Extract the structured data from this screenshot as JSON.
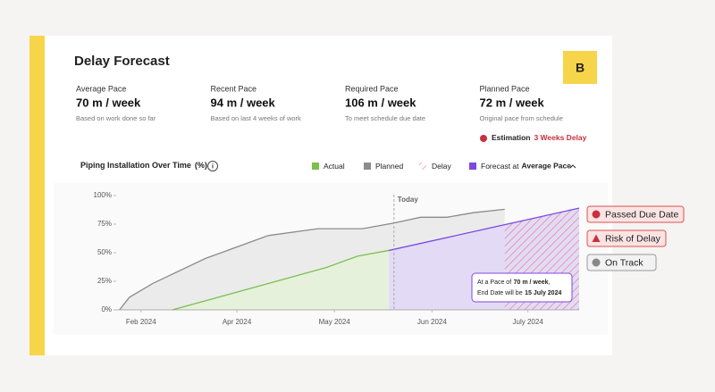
{
  "header": {
    "title": "Delay Forecast",
    "logo": "B"
  },
  "metrics": [
    {
      "label": "Average Pace",
      "value": "70 m / week",
      "note": "Based on work done so far"
    },
    {
      "label": "Recent Pace",
      "value": "94 m / week",
      "note": "Based on last 4 weeks of work"
    },
    {
      "label": "Required Pace",
      "value": "106 m / week",
      "note": "To meet schedule due date"
    },
    {
      "label": "Planned Pace",
      "value": "72 m / week",
      "note": "Original pace from schedule"
    }
  ],
  "estimation": {
    "label": "Estimation",
    "value": "3 Weeks Delay"
  },
  "chart_data": {
    "type": "line",
    "title": "Piping Installation Over Time",
    "unit": "(%)",
    "xlim": [
      0,
      28
    ],
    "xticks": [
      {
        "value": 1.5,
        "label": "Feb 2024"
      },
      {
        "value": 7.3,
        "label": "Apr 2024"
      },
      {
        "value": 13.2,
        "label": "May 2024"
      },
      {
        "value": 19.1,
        "label": "Jun 2024"
      },
      {
        "value": 24.9,
        "label": "July 2024"
      }
    ],
    "ylim": [
      0,
      100
    ],
    "yticks": [
      {
        "value": 0,
        "label": "0%"
      },
      {
        "value": 25,
        "label": "25%"
      },
      {
        "value": 50,
        "label": "50%"
      },
      {
        "value": 75,
        "label": "75%"
      },
      {
        "value": 100,
        "label": "100%"
      }
    ],
    "today": {
      "label": "Today",
      "x": 16.8
    },
    "series": [
      {
        "name": "Planned",
        "color": "#8c8c8c",
        "fill": "#ebebeb",
        "x": [
          0.2,
          0.8,
          2.2,
          5.4,
          9.2,
          12.2,
          14.9,
          16.8,
          18.4,
          20.0,
          21.6,
          23.5
        ],
        "values": [
          0,
          11,
          23,
          45,
          65,
          71,
          71,
          76,
          81,
          81,
          85,
          88
        ]
      },
      {
        "name": "Actual",
        "color": "#7cbf4e",
        "fill": "#e6f1dc",
        "x": [
          3.4,
          9.2,
          12.7,
          14.6,
          16.5
        ],
        "values": [
          0,
          23,
          37,
          47,
          52
        ]
      },
      {
        "name": "Forecast at",
        "color": "#7b4ae0",
        "fill": "#e3dbf6",
        "x": [
          16.5,
          28
        ],
        "values": [
          52,
          89
        ]
      }
    ],
    "legend_order": [
      "Actual",
      "Planned",
      "Delay",
      "Forecast at"
    ],
    "forecast_basis": "Average Pace",
    "delay": {
      "name": "Delay",
      "color": "#e0707e",
      "x": [
        23.5,
        28
      ]
    },
    "tooltip": {
      "pace_prefix": "At a Pace of",
      "pace": "70 m / week",
      "pace_suffix": ",",
      "end_prefix": "End Date will be",
      "end_date": "15 July 2024"
    }
  },
  "status_badges": [
    {
      "label": "Passed Due Date",
      "kind": "danger"
    },
    {
      "label": "Risk of Delay",
      "kind": "warning"
    },
    {
      "label": "On Track",
      "kind": "neutral"
    }
  ]
}
